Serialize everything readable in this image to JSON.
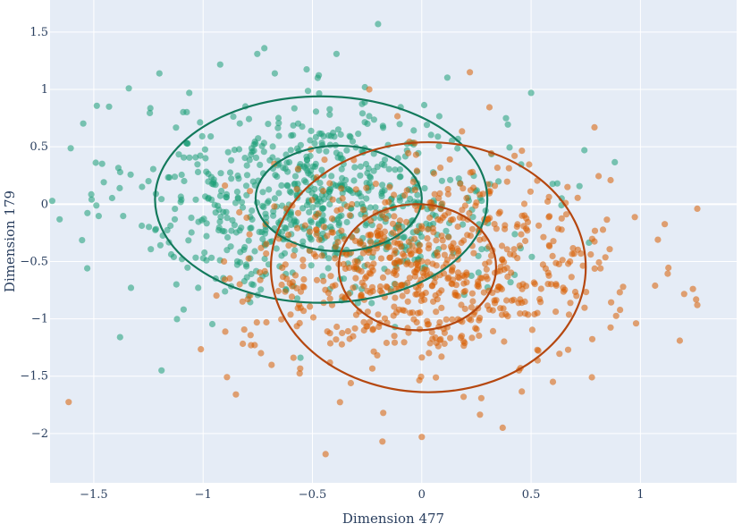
{
  "chart_data": {
    "type": "scatter",
    "title": "",
    "xlabel": "Dimension 477",
    "ylabel": "Dimension 179",
    "xlim": [
      -1.7,
      1.44
    ],
    "ylim": [
      -2.43,
      1.78
    ],
    "x_ticks": [
      -1.5,
      -1,
      -0.5,
      0,
      0.5,
      1
    ],
    "x_tick_labels": [
      "−1.5",
      "−1",
      "−0.5",
      "0",
      "0.5",
      "1"
    ],
    "y_ticks": [
      -2,
      -1.5,
      -1,
      -0.5,
      0,
      0.5,
      1,
      1.5
    ],
    "y_tick_labels": [
      "−2",
      "−1.5",
      "−1",
      "−0.5",
      "0",
      "0.5",
      "1",
      "1.5"
    ],
    "grid": true,
    "legend": "none",
    "plot_bgcolor": "#e5ecf6",
    "series": [
      {
        "color": "#1b9e77",
        "marker_opacity": 0.55,
        "n_points": 750,
        "center": [
          -0.47,
          0.04
        ],
        "std": [
          0.42,
          0.42
        ],
        "ellipse_color": "#137a5c",
        "ellipses": [
          {
            "center": [
              -0.46,
              0.04
            ],
            "rx": 0.76,
            "ry": 0.9
          },
          {
            "center": [
              -0.38,
              0.05
            ],
            "rx": 0.38,
            "ry": 0.46
          }
        ],
        "points_sample": [
          [
            -1.51,
            0.04
          ],
          [
            -1.43,
            0.85
          ],
          [
            -1.34,
            1.01
          ],
          [
            -1.2,
            1.14
          ],
          [
            -0.2,
            1.57
          ],
          [
            -0.72,
            1.36
          ],
          [
            -0.39,
            1.31
          ],
          [
            -1.38,
            -1.16
          ],
          [
            -1.19,
            -1.45
          ],
          [
            -1.53,
            -0.56
          ],
          [
            -1.33,
            -0.73
          ],
          [
            0.5,
            0.97
          ],
          [
            0.62,
            0.18
          ],
          [
            0.64,
            0.05
          ],
          [
            -0.26,
            1.02
          ]
        ]
      },
      {
        "color": "#d95f02",
        "marker_opacity": 0.55,
        "n_points": 750,
        "center": [
          0.03,
          -0.55
        ],
        "std": [
          0.42,
          0.42
        ],
        "ellipse_color": "#b5470f",
        "ellipses": [
          {
            "center": [
              0.03,
              -0.55
            ],
            "rx": 0.72,
            "ry": 1.09
          },
          {
            "center": [
              -0.02,
              -0.55
            ],
            "rx": 0.36,
            "ry": 0.55
          }
        ],
        "points_sample": [
          [
            1.26,
            -0.04
          ],
          [
            1.26,
            -0.88
          ],
          [
            1.24,
            -0.74
          ],
          [
            1.18,
            -1.19
          ],
          [
            1.08,
            -0.31
          ],
          [
            0.98,
            -1.04
          ],
          [
            -0.44,
            -2.18
          ],
          [
            -0.18,
            -2.07
          ],
          [
            0.0,
            -2.03
          ],
          [
            -0.24,
            1.0
          ],
          [
            0.22,
            1.15
          ],
          [
            0.79,
            0.67
          ],
          [
            0.37,
            -1.95
          ],
          [
            -0.85,
            -1.66
          ],
          [
            0.6,
            -1.55
          ]
        ]
      }
    ]
  }
}
